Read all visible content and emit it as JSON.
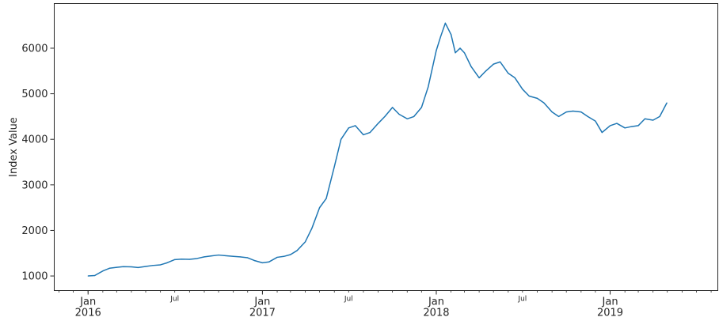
{
  "chart_data": {
    "type": "line",
    "title": "",
    "xlabel": "",
    "ylabel": "Index Value",
    "grid": false,
    "legend": "none",
    "color": "#1f77b4",
    "xlim": [
      "2015-10-22",
      "2019-08-15"
    ],
    "ylim": [
      680,
      6980
    ],
    "y_ticks": [
      1000,
      2000,
      3000,
      4000,
      5000,
      6000
    ],
    "x_major_ticks": [
      {
        "date": "2016-01-01",
        "label": "Jan",
        "year": "2016"
      },
      {
        "date": "2017-01-01",
        "label": "Jan",
        "year": "2017"
      },
      {
        "date": "2018-01-01",
        "label": "Jan",
        "year": "2018"
      },
      {
        "date": "2019-01-01",
        "label": "Jan",
        "year": "2019"
      }
    ],
    "x_minor_labeled_ticks": [
      {
        "date": "2016-07-01",
        "label": "Jul"
      },
      {
        "date": "2017-07-01",
        "label": "Jul"
      },
      {
        "date": "2018-07-01",
        "label": "Jul"
      }
    ],
    "series": [
      {
        "x": [
          "2016-01-01",
          "2016-01-15",
          "2016-02-01",
          "2016-02-15",
          "2016-03-01",
          "2016-03-15",
          "2016-04-01",
          "2016-04-15",
          "2016-05-01",
          "2016-05-15",
          "2016-06-01",
          "2016-06-15",
          "2016-07-01",
          "2016-07-15",
          "2016-08-01",
          "2016-08-15",
          "2016-09-01",
          "2016-09-15",
          "2016-10-01",
          "2016-10-15",
          "2016-11-01",
          "2016-11-15",
          "2016-12-01",
          "2016-12-15",
          "2017-01-01",
          "2017-01-15",
          "2017-02-01",
          "2017-02-15",
          "2017-03-01",
          "2017-03-15",
          "2017-04-01",
          "2017-04-15",
          "2017-05-01",
          "2017-05-15",
          "2017-06-01",
          "2017-06-15",
          "2017-07-01",
          "2017-07-15",
          "2017-08-01",
          "2017-08-15",
          "2017-09-01",
          "2017-09-15",
          "2017-10-01",
          "2017-10-15",
          "2017-11-01",
          "2017-11-15",
          "2017-12-01",
          "2017-12-15",
          "2018-01-01",
          "2018-01-10",
          "2018-01-20",
          "2018-02-01",
          "2018-02-10",
          "2018-02-20",
          "2018-03-01",
          "2018-03-15",
          "2018-04-01",
          "2018-04-15",
          "2018-05-01",
          "2018-05-15",
          "2018-06-01",
          "2018-06-15",
          "2018-07-01",
          "2018-07-15",
          "2018-08-01",
          "2018-08-15",
          "2018-09-01",
          "2018-09-15",
          "2018-10-01",
          "2018-10-15",
          "2018-11-01",
          "2018-11-15",
          "2018-12-01",
          "2018-12-15",
          "2019-01-01",
          "2019-01-15",
          "2019-02-01",
          "2019-02-15",
          "2019-03-01",
          "2019-03-15",
          "2019-04-01",
          "2019-04-15",
          "2019-04-30"
        ],
        "y": [
          1000,
          1010,
          1110,
          1170,
          1190,
          1205,
          1200,
          1185,
          1210,
          1230,
          1245,
          1290,
          1360,
          1370,
          1365,
          1380,
          1420,
          1440,
          1460,
          1445,
          1430,
          1420,
          1400,
          1340,
          1290,
          1310,
          1410,
          1430,
          1470,
          1560,
          1750,
          2050,
          2500,
          2700,
          3400,
          4000,
          4250,
          4300,
          4100,
          4150,
          4350,
          4500,
          4700,
          4550,
          4450,
          4500,
          4700,
          5150,
          5950,
          6250,
          6550,
          6300,
          5900,
          6000,
          5900,
          5600,
          5350,
          5500,
          5650,
          5700,
          5450,
          5350,
          5100,
          4950,
          4900,
          4800,
          4600,
          4500,
          4600,
          4620,
          4600,
          4500,
          4400,
          4150,
          4300,
          4350,
          4250,
          4280,
          4300,
          4450,
          4420,
          4500,
          4800
        ]
      }
    ]
  }
}
